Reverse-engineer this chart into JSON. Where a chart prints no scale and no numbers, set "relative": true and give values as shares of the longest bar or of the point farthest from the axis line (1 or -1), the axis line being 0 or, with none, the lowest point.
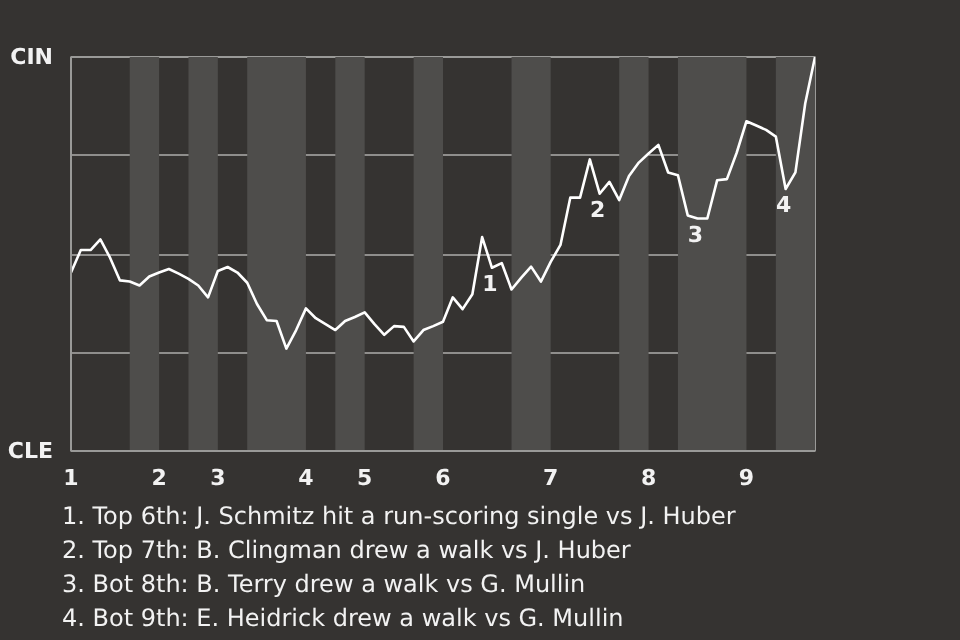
{
  "chart_data": {
    "type": "line",
    "relative": true,
    "categories": [
      "1",
      null,
      null,
      null,
      null,
      null,
      null,
      null,
      null,
      "2",
      null,
      null,
      null,
      null,
      null,
      "3",
      null,
      null,
      null,
      null,
      null,
      null,
      null,
      null,
      "4",
      null,
      null,
      null,
      null,
      null,
      "5",
      null,
      null,
      null,
      null,
      null,
      null,
      null,
      "6",
      null,
      null,
      null,
      null,
      null,
      null,
      null,
      null,
      null,
      null,
      "7",
      null,
      null,
      null,
      null,
      null,
      null,
      null,
      null,
      null,
      "8",
      null,
      null,
      null,
      null,
      null,
      null,
      null,
      null,
      null,
      "9",
      null,
      null,
      null,
      null,
      null,
      null,
      null
    ],
    "grid": "y",
    "marker": "none",
    "line_style": "solid",
    "series": [
      {
        "color": "#ffffff",
        "values": [
          0.453,
          0.51,
          0.51,
          0.537,
          0.49,
          0.433,
          0.43,
          0.42,
          0.443,
          0.453,
          0.462,
          0.45,
          0.437,
          0.42,
          0.39,
          0.457,
          0.467,
          0.453,
          0.427,
          0.373,
          0.332,
          0.33,
          0.26,
          0.307,
          0.362,
          0.337,
          0.322,
          0.307,
          0.33,
          0.34,
          0.352,
          0.322,
          0.295,
          0.317,
          0.315,
          0.278,
          0.307,
          0.317,
          0.328,
          0.39,
          0.36,
          0.398,
          0.543,
          0.465,
          0.477,
          0.41,
          0.44,
          0.468,
          0.43,
          0.48,
          0.523,
          0.643,
          0.643,
          0.74,
          0.653,
          0.683,
          0.637,
          0.698,
          0.732,
          0.755,
          0.777,
          0.707,
          0.7,
          0.598,
          0.59,
          0.59,
          0.687,
          0.69,
          0.757,
          0.837,
          0.826,
          0.815,
          0.798,
          0.665,
          0.707,
          0.882,
          1
        ]
      }
    ],
    "annotations": [
      {
        "text": "1",
        "y": 0.465
      },
      {
        "text": "2",
        "y": 0.653
      },
      {
        "text": "3",
        "y": 0.59
      },
      {
        "text": "4",
        "y": 0.665
      },
      "CIN",
      "CLE",
      "1. Top 6th: J. Schmitz hit a run-scoring single vs J. Huber",
      "2. Top 7th: B. Clingman drew a walk vs J. Huber",
      "3. Bot 8th: B. Terry drew a walk vs G. Mullin",
      "4. Bot 9th: E. Heidrick drew a walk vs G. Mullin"
    ]
  }
}
